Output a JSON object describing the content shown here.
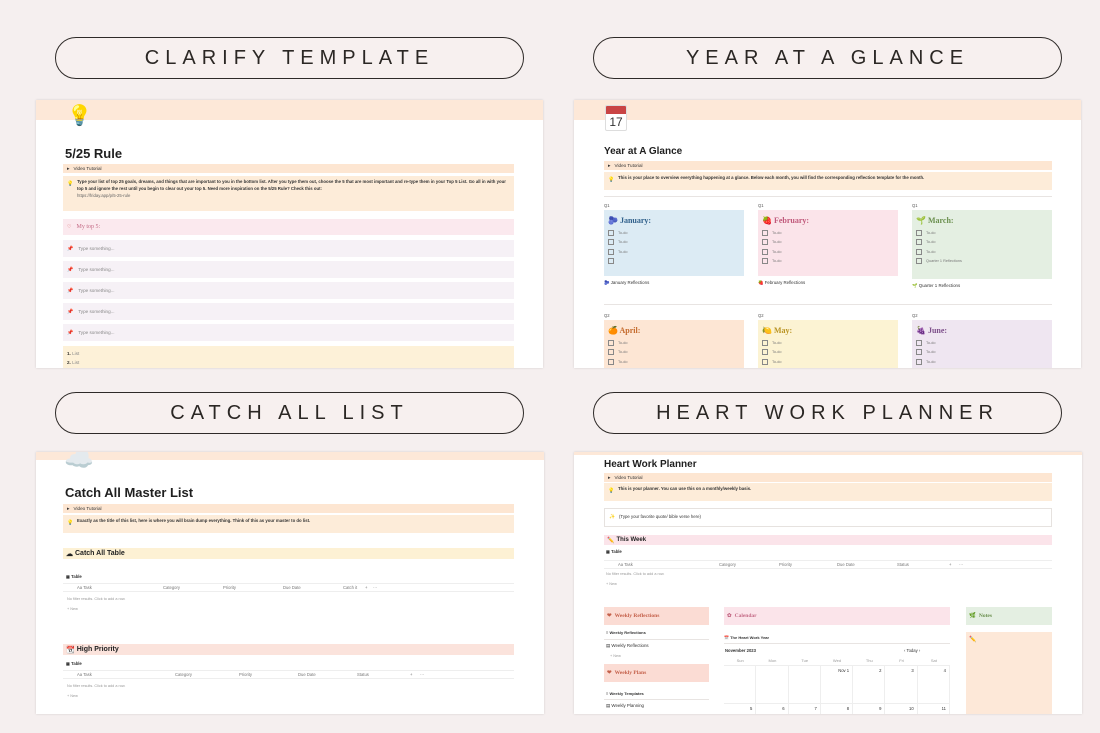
{
  "titles": {
    "clarify": "CLARIFY TEMPLATE",
    "year": "YEAR AT A GLANCE",
    "catch": "CATCH ALL LIST",
    "heart": "HEART WORK PLANNER"
  },
  "clarify": {
    "icon": "lightbulb-icon",
    "title": "5/25 Rule",
    "toggle": "Video Tutorial",
    "callout": "Type your list of top 25 goals, dreams, and things that are important to you in the bottom list. After you type them out, choose the 5 that are most important and re-type them in your Top 5 List. Go all in with your top 5 and ignore the rest until you begin to clear out your top 5. Need more inspiration on the 5/25 Rule? Check this out:",
    "link": "https://friday.app/p/5-25-rule",
    "top5": "My top 5:",
    "placeholders": [
      "Type something...",
      "Type something...",
      "Type something...",
      "Type something...",
      "Type something..."
    ],
    "list": [
      {
        "num": "1.",
        "label": "List"
      },
      {
        "num": "2.",
        "label": "List"
      }
    ]
  },
  "year": {
    "icon": "calendar-icon",
    "cal_day": "17",
    "title": "Year at A Glance",
    "toggle": "Video Tutorial",
    "callout": "This is your place to overview everything happening at a glance. Below each month, you will find the corresponding reflection template for the month.",
    "q1": [
      {
        "q": "Q1",
        "name": "January:",
        "emoji": "🫐",
        "bg": "#dcebf4",
        "color": "#2f5f8a",
        "todos": [
          "To-do",
          "To-do",
          "To-do",
          ""
        ],
        "refl": "January Reflections"
      },
      {
        "q": "Q1",
        "name": "February:",
        "emoji": "🍓",
        "bg": "#fbe4ea",
        "color": "#c0587a",
        "todos": [
          "To-do",
          "To-do",
          "To-do",
          "To-do"
        ],
        "refl": "February Reflections"
      },
      {
        "q": "Q1",
        "name": "March:",
        "emoji": "🌱",
        "bg": "#e4efe2",
        "color": "#6a8f4e",
        "todos": [
          "To-do",
          "To-do",
          "To-do",
          "Quarter 1 Reflections"
        ],
        "refl": "Quarter 1 Reflections"
      }
    ],
    "q2": [
      {
        "q": "Q2",
        "name": "April:",
        "emoji": "🍊",
        "bg": "#fde6d4",
        "color": "#c46a2c",
        "todos": [
          "To-do",
          "To-do",
          "To-do"
        ]
      },
      {
        "q": "Q2",
        "name": "May:",
        "emoji": "🍋",
        "bg": "#fcf3d3",
        "color": "#b99322",
        "todos": [
          "To-do",
          "To-do",
          "To-do"
        ]
      },
      {
        "q": "Q2",
        "name": "June:",
        "emoji": "🍇",
        "bg": "#efe6f1",
        "color": "#7d4f8a",
        "todos": [
          "To-do",
          "To-do",
          "To-do"
        ]
      }
    ]
  },
  "catch": {
    "icon": "cloud-icon",
    "title": "Catch All Master List",
    "toggle": "Video Tutorial",
    "callout": "Exactly as the title of this list, here is where you will brain dump everything. Think of this as your master to do list.",
    "section1": "Catch All Table",
    "section2": "High Priority",
    "table_tab": "Table",
    "cols1": [
      "Aa Task",
      "Category",
      "Priority",
      "Due Date",
      "Catch it",
      "+",
      "···"
    ],
    "cols2": [
      "Aa Task",
      "Category",
      "Priority",
      "Due Date",
      "Status",
      "+",
      "···"
    ],
    "no_results": "No filter results. Click to add a row.",
    "new": "+ New"
  },
  "heart": {
    "title": "Heart Work Planner",
    "toggle": "Video Tutorial",
    "callout": "This is your planner. You can use this on a monthly/weekly basis.",
    "quote": "(Type your favorite quote/ bible verse here)",
    "this_week": "This Week",
    "table_tab": "Table",
    "cols": [
      "Aa Task",
      "Category",
      "Priority",
      "Due Date",
      "Status",
      "+",
      "···"
    ],
    "no_results": "No filter results. Click to add a row.",
    "new": "+ New",
    "weekly_reflections_head": "Weekly Reflections",
    "weekly_reflections_sub": "Weekly Reflections",
    "weekly_reflections_item": "Weekly Reflections",
    "weekly_reflections_new": "+ New",
    "weekly_plans_head": "Weekly Plans",
    "weekly_templates": "Weekly Templates",
    "weekly_planning": "Weekly Planning",
    "calendar_head": "Calendar",
    "calendar_view": "The Heart Work Year",
    "month": "November 2023",
    "today": "Today",
    "dow": [
      "Sun",
      "Mon",
      "Tue",
      "Wed",
      "Thu",
      "Fri",
      "Sat"
    ],
    "week1": [
      "",
      "",
      "",
      "Nov 1",
      "2",
      "3",
      "4"
    ],
    "week2": [
      "5",
      "6",
      "7",
      "8",
      "9",
      "10",
      "11"
    ],
    "notes_head": "Notes"
  }
}
